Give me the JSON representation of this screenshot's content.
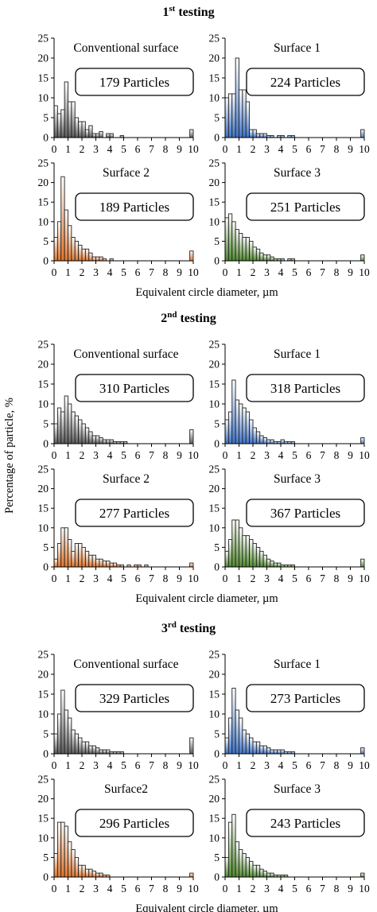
{
  "figure": {
    "y_axis_title": "Percentage of particle, %",
    "x_axis_title": "Equivalent circle diameter, µm",
    "colors": {
      "conventional": "#5a5a5a",
      "surface1": "#3d73c7",
      "surface2": "#e0742b",
      "surface3": "#4f8a2d"
    }
  },
  "chart_data": [
    {
      "section": "1st testing",
      "title_main": "1",
      "title_sup": "st",
      "title_rest": " testing",
      "panels": [
        {
          "title": "Conventional surface",
          "count": "179 Particles",
          "color_key": "conventional",
          "values": [
            8,
            6,
            7,
            14,
            9,
            9,
            5,
            4,
            4,
            2,
            3,
            1,
            1,
            1.5,
            0,
            1,
            1,
            0,
            0,
            0.5,
            0,
            0,
            0,
            0,
            0,
            0,
            0,
            0,
            0,
            0,
            0,
            0,
            0,
            0,
            0,
            0,
            0,
            0,
            0,
            2
          ]
        },
        {
          "title": "Surface 1",
          "count": "224 Particles",
          "color_key": "surface1",
          "values": [
            10,
            11,
            11,
            20,
            12,
            12,
            9,
            2,
            2,
            1,
            1,
            1,
            0.5,
            0.5,
            0,
            0.5,
            0.5,
            0,
            0.5,
            0.5,
            0,
            0,
            0,
            0,
            0,
            0,
            0,
            0,
            0,
            0,
            0,
            0,
            0,
            0,
            0,
            0,
            0,
            0,
            0,
            2
          ]
        },
        {
          "title": "Surface 2",
          "count": "189 Particles",
          "color_key": "surface2",
          "values": [
            6,
            10,
            21.5,
            13,
            9,
            6,
            5,
            4,
            3,
            3,
            2,
            1,
            1,
            1,
            0.5,
            0,
            0.5,
            0,
            0,
            0,
            0,
            0,
            0,
            0,
            0,
            0,
            0,
            0,
            0,
            0,
            0,
            0,
            0,
            0,
            0,
            0,
            0,
            0,
            0,
            2.5
          ]
        },
        {
          "title": "Surface 3",
          "count": "251 Particles",
          "color_key": "surface3",
          "values": [
            11,
            12,
            10,
            8,
            7,
            6,
            6,
            5,
            3.5,
            3,
            2,
            1.5,
            1.5,
            1,
            0.5,
            0.5,
            0.5,
            0,
            0.5,
            0.5,
            0,
            0,
            0,
            0,
            0,
            0,
            0,
            0,
            0,
            0,
            0,
            0,
            0,
            0,
            0,
            0,
            0,
            0,
            0,
            1.5
          ]
        }
      ]
    },
    {
      "section": "2nd testing",
      "title_main": "2",
      "title_sup": "nd",
      "title_rest": " testing",
      "panels": [
        {
          "title": "Conventional surface",
          "count": "310 Particles",
          "color_key": "conventional",
          "values": [
            5,
            9,
            8,
            12,
            10,
            8,
            7,
            6,
            5,
            4,
            3,
            2,
            2,
            1.5,
            1,
            1,
            1,
            0.5,
            0.5,
            0.5,
            0.5,
            0,
            0,
            0,
            0,
            0,
            0,
            0,
            0,
            0,
            0,
            0,
            0,
            0,
            0,
            0,
            0,
            0,
            0,
            3.5
          ]
        },
        {
          "title": "Surface 1",
          "count": "318 Particles",
          "color_key": "surface1",
          "values": [
            6,
            8,
            16,
            11,
            10,
            9,
            8,
            6,
            4,
            3,
            2,
            1.5,
            1,
            1,
            0.5,
            0.5,
            1,
            0.5,
            0.5,
            0.5,
            0,
            0,
            0,
            0,
            0,
            0,
            0,
            0,
            0,
            0,
            0,
            0,
            0,
            0,
            0,
            0,
            0,
            0,
            0,
            1.5
          ]
        },
        {
          "title": "Surface 2",
          "count": "277 Particles",
          "color_key": "surface2",
          "values": [
            2,
            6,
            10,
            10,
            7,
            4,
            6,
            6,
            5,
            4,
            3,
            3,
            2,
            2,
            1.5,
            1.5,
            1,
            1,
            0.5,
            0.5,
            0,
            0.5,
            0,
            0.5,
            0.5,
            0,
            0.5,
            0,
            0,
            0,
            0,
            0,
            0,
            0,
            0,
            0,
            0,
            0,
            0,
            1
          ]
        },
        {
          "title": "Surface 3",
          "count": "367 Particles",
          "color_key": "surface3",
          "values": [
            4,
            7,
            12,
            12,
            10,
            8,
            8,
            7,
            6,
            5,
            4,
            3,
            2,
            1.5,
            1,
            1,
            0.5,
            0.5,
            0.5,
            0.5,
            0,
            0,
            0,
            0,
            0,
            0,
            0,
            0,
            0,
            0,
            0,
            0,
            0,
            0,
            0,
            0,
            0,
            0,
            0,
            2
          ]
        }
      ]
    },
    {
      "section": "3rd testing",
      "title_main": "3",
      "title_sup": "rd",
      "title_rest": " testing",
      "panels": [
        {
          "title": "Conventional surface",
          "count": "329 Particles",
          "color_key": "conventional",
          "values": [
            5,
            10,
            16,
            11,
            9,
            6,
            5,
            4,
            3,
            3,
            2,
            2,
            1.5,
            1,
            1,
            1,
            0.5,
            0.5,
            0.5,
            0.5,
            0,
            0,
            0,
            0,
            0,
            0,
            0,
            0,
            0,
            0,
            0,
            0,
            0,
            0,
            0,
            0,
            0,
            0,
            0,
            4
          ]
        },
        {
          "title": "Surface 1",
          "count": "273 Particles",
          "color_key": "surface1",
          "values": [
            4,
            9,
            16.5,
            11,
            9,
            6,
            5,
            4,
            3,
            3,
            2,
            2,
            1.5,
            1,
            1,
            1,
            1,
            0.5,
            0.5,
            0.5,
            0,
            0,
            0,
            0,
            0,
            0,
            0,
            0,
            0,
            0,
            0,
            0,
            0,
            0,
            0,
            0,
            0,
            0,
            0,
            1.5
          ]
        },
        {
          "title": "Surface2",
          "count": "296 Particles",
          "color_key": "surface2",
          "values": [
            6,
            14,
            14,
            13,
            9,
            7,
            5,
            3,
            3,
            2,
            2,
            1.5,
            1,
            1,
            0.5,
            0.5,
            0,
            0,
            0,
            0,
            0,
            0,
            0,
            0,
            0,
            0,
            0,
            0,
            0,
            0,
            0,
            0,
            0,
            0,
            0,
            0,
            0,
            0,
            0,
            1
          ]
        },
        {
          "title": "Surface 3",
          "count": "243 Particles",
          "color_key": "surface3",
          "values": [
            5,
            14,
            16,
            9,
            7,
            6,
            5,
            4,
            3,
            3,
            2,
            1.5,
            1,
            1,
            0.5,
            0.5,
            0.5,
            0.5,
            0,
            0,
            0,
            0,
            0,
            0,
            0,
            0,
            0,
            0,
            0,
            0,
            0,
            0,
            0,
            0,
            0,
            0,
            0,
            0,
            0,
            1
          ]
        }
      ]
    }
  ],
  "axes": {
    "x_ticks": [
      "0",
      "1",
      "2",
      "3",
      "4",
      "5",
      "6",
      "7",
      "8",
      "9",
      "10"
    ],
    "y_ticks": [
      "0",
      "5",
      "10",
      "15",
      "20",
      "25"
    ],
    "xlim": [
      0,
      10
    ],
    "ylim": [
      0,
      25
    ],
    "bin_width": 0.25,
    "grid": false,
    "type": "bar"
  }
}
